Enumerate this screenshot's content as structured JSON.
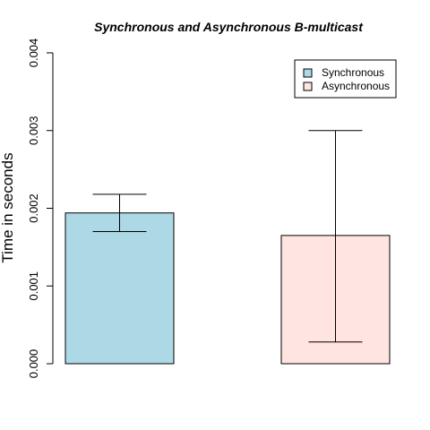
{
  "chart_data": {
    "type": "bar",
    "title": "Synchronous and Asynchronous B-multicast",
    "xlabel": "",
    "ylabel": "Time in seconds",
    "ylim": [
      0,
      0.004
    ],
    "yticks": [
      "0.000",
      "0.001",
      "0.002",
      "0.003",
      "0.004"
    ],
    "ytick_values": [
      0,
      0.001,
      0.002,
      0.003,
      0.004
    ],
    "grid": false,
    "legend_position": "top-right",
    "categories": [
      "Synchronous",
      "Asynchronous"
    ],
    "series": [
      {
        "name": "Synchronous",
        "value": 0.00194,
        "error_low": 0.0017,
        "error_high": 0.00218,
        "color": "#add8e6"
      },
      {
        "name": "Asynchronous",
        "value": 0.00165,
        "error_low": 0.00028,
        "error_high": 0.003,
        "color": "#ffe4e1"
      }
    ]
  }
}
